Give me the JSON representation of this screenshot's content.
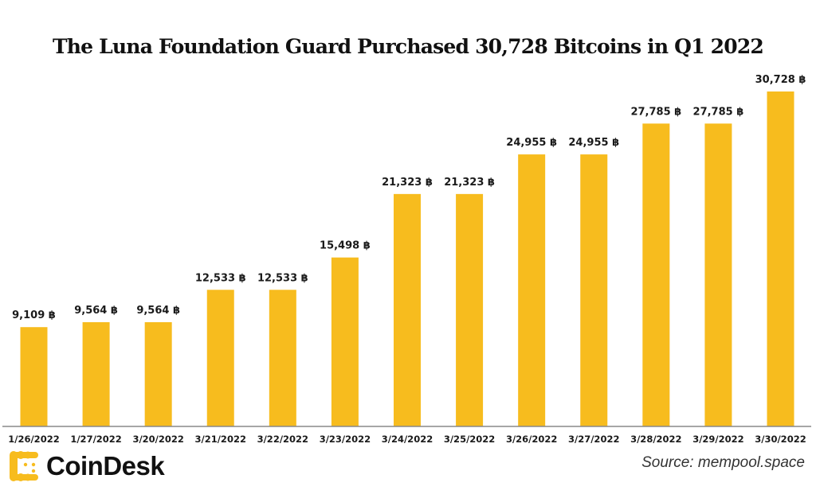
{
  "chart_data": {
    "type": "bar",
    "title": "The Luna Foundation Guard Purchased 30,728 Bitcoins in Q1 2022",
    "xlabel": "",
    "ylabel": "",
    "unit_symbol": "฿",
    "categories": [
      "1/26/2022",
      "1/27/2022",
      "3/20/2022",
      "3/21/2022",
      "3/22/2022",
      "3/23/2022",
      "3/24/2022",
      "3/25/2022",
      "3/26/2022",
      "3/27/2022",
      "3/28/2022",
      "3/29/2022",
      "3/30/2022"
    ],
    "values": [
      9109,
      9564,
      9564,
      12533,
      12533,
      15498,
      21323,
      21323,
      24955,
      24955,
      27785,
      27785,
      30728
    ],
    "data_labels": [
      "9,109 ฿",
      "9,564 ฿",
      "9,564 ฿",
      "12,533 ฿",
      "12,533 ฿",
      "15,498 ฿",
      "21,323 ฿",
      "21,323 ฿",
      "24,955 ฿",
      "24,955 ฿",
      "27,785 ฿",
      "27,785 ฿",
      "30,728 ฿"
    ],
    "ylim": [
      0,
      30728
    ],
    "grid": false,
    "legend": "none",
    "colors": {
      "bar": "#F7BC1E",
      "axis": "#888888"
    }
  },
  "footer": {
    "logo_text": "CoinDesk",
    "source": "Source: mempool.space",
    "logo_color": "#F7BC1E"
  }
}
